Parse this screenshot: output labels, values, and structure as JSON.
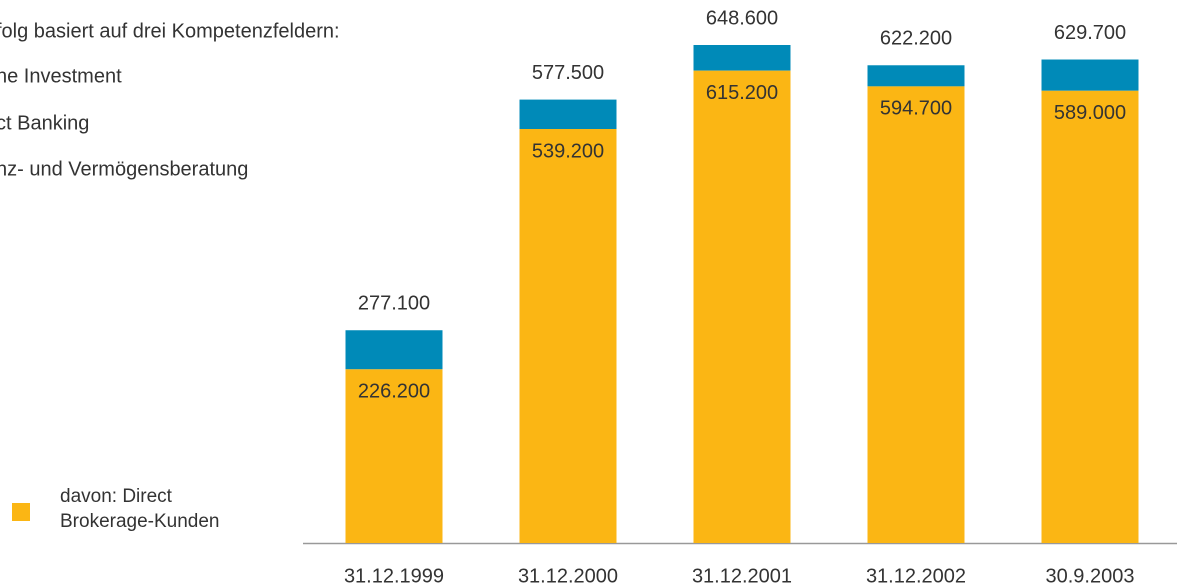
{
  "chart_data": {
    "type": "stacked_total_bar",
    "annotations": [
      "folg basiert auf drei Kompetenzfeldern:",
      "ne Investment",
      "ct Banking",
      "nz- und Vermögensberatung"
    ],
    "categories": [
      "31.12.1999",
      "31.12.2000",
      "31.12.2001",
      "31.12.2002",
      "30.9.2003"
    ],
    "series": [
      {
        "name": "davon: Direct Brokerage-Kunden",
        "color": "#fbb614",
        "values": [
          226200,
          539200,
          615200,
          594700,
          589000
        ],
        "value_labels": [
          "226.200",
          "539.200",
          "615.200",
          "594.700",
          "589.000"
        ]
      }
    ],
    "totals": [
      277100,
      577500,
      648600,
      622200,
      629700
    ],
    "total_labels": [
      "277.100",
      "577.500",
      "648.600",
      "622.200",
      "629.700"
    ],
    "total_color": "#008ab8"
  }
}
